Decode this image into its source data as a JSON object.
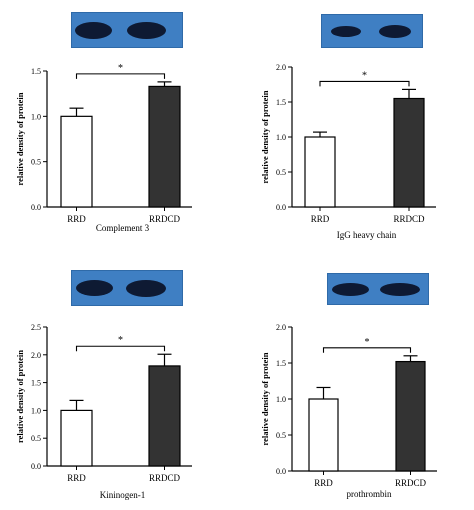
{
  "chart_data": [
    {
      "type": "bar",
      "categories": [
        "RRD",
        "RRDCD"
      ],
      "values": [
        1.0,
        1.33
      ],
      "errors": [
        0.09,
        0.05
      ],
      "ylabel": "relative density of protein",
      "xlabel": "Complement 3",
      "ylim": [
        0.0,
        1.5
      ],
      "yticks": [
        "0.0",
        "0.5",
        "1.0",
        "1.5"
      ],
      "significance": "*",
      "colors": [
        "#ffffff",
        "#333333"
      ],
      "blot": "western-blot-band-image"
    },
    {
      "type": "bar",
      "categories": [
        "RRD",
        "RRDCD"
      ],
      "values": [
        1.0,
        1.55
      ],
      "errors": [
        0.07,
        0.13
      ],
      "ylabel": "relative density of protein",
      "xlabel": "IgG heavy chain",
      "ylim": [
        0.0,
        2.0
      ],
      "yticks": [
        "0.0",
        "0.5",
        "1.0",
        "1.5",
        "2.0"
      ],
      "significance": "*",
      "colors": [
        "#ffffff",
        "#333333"
      ],
      "blot": "western-blot-band-image"
    },
    {
      "type": "bar",
      "categories": [
        "RRD",
        "RRDCD"
      ],
      "values": [
        1.0,
        1.8
      ],
      "errors": [
        0.18,
        0.21
      ],
      "ylabel": "relative density of protein",
      "xlabel": "Kininogen-1",
      "ylim": [
        0.0,
        2.5
      ],
      "yticks": [
        "0.0",
        "0.5",
        "1.0",
        "1.5",
        "2.0",
        "2.5"
      ],
      "significance": "*",
      "colors": [
        "#ffffff",
        "#333333"
      ],
      "blot": "western-blot-band-image"
    },
    {
      "type": "bar",
      "categories": [
        "RRD",
        "RRDCD"
      ],
      "values": [
        1.0,
        1.52
      ],
      "errors": [
        0.16,
        0.08
      ],
      "ylabel": "relative density of protein",
      "xlabel": "prothrombin",
      "ylim": [
        0.0,
        2.0
      ],
      "yticks": [
        "0.0",
        "0.5",
        "1.0",
        "1.5",
        "2.0"
      ],
      "significance": "*",
      "colors": [
        "#ffffff",
        "#333333"
      ],
      "blot": "western-blot-band-image"
    }
  ]
}
